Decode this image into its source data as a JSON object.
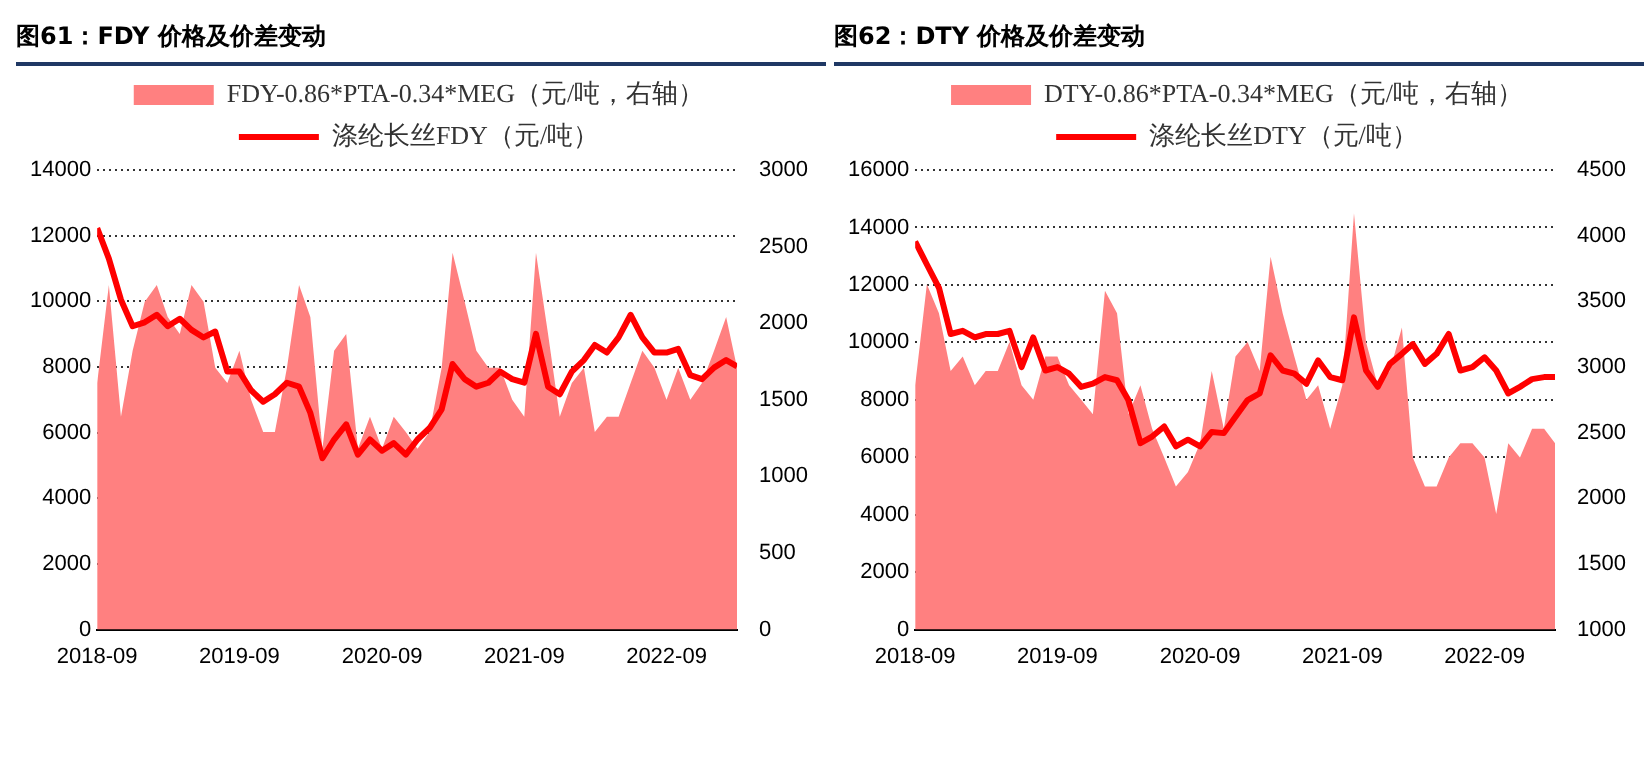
{
  "chart_data": [
    {
      "type": "line",
      "title": "图61：FDY 价格及价差变动",
      "legend": "top",
      "grid": "y",
      "x": [
        "2018-09",
        "2018-10",
        "2018-11",
        "2018-12",
        "2019-01",
        "2019-02",
        "2019-03",
        "2019-04",
        "2019-05",
        "2019-06",
        "2019-07",
        "2019-08",
        "2019-09",
        "2019-10",
        "2019-11",
        "2019-12",
        "2020-01",
        "2020-02",
        "2020-03",
        "2020-04",
        "2020-05",
        "2020-06",
        "2020-07",
        "2020-08",
        "2020-09",
        "2020-10",
        "2020-11",
        "2020-12",
        "2021-01",
        "2021-02",
        "2021-03",
        "2021-04",
        "2021-05",
        "2021-06",
        "2021-07",
        "2021-08",
        "2021-09",
        "2021-10",
        "2021-11",
        "2021-12",
        "2022-01",
        "2022-02",
        "2022-03",
        "2022-04",
        "2022-05",
        "2022-06",
        "2022-07",
        "2022-08",
        "2022-09",
        "2022-10",
        "2022-11",
        "2022-12",
        "2023-01",
        "2023-02",
        "2023-03"
      ],
      "xlim": [
        "2018-09",
        "2023-03"
      ],
      "xticks": [
        "2018-09",
        "2019-09",
        "2020-09",
        "2021-09",
        "2022-09"
      ],
      "ylim": [
        0,
        14000
      ],
      "yticks": [
        0,
        2000,
        4000,
        6000,
        8000,
        10000,
        12000,
        14000
      ],
      "y2lim": [
        0,
        3000
      ],
      "y2ticks": [
        0,
        500,
        1000,
        1500,
        2000,
        2500,
        3000
      ],
      "series": [
        {
          "name": "FDY-0.86*PTA-0.34*MEG（元/吨，右轴）",
          "type": "area",
          "axis": "y2",
          "color": "#ff8080",
          "values": [
            1610,
            2250,
            1390,
            1820,
            2140,
            2250,
            2040,
            1930,
            2250,
            2140,
            1710,
            1610,
            1820,
            1500,
            1290,
            1290,
            1710,
            2250,
            2040,
            1180,
            1820,
            1930,
            1180,
            1390,
            1180,
            1390,
            1290,
            1180,
            1290,
            1710,
            2460,
            2140,
            1820,
            1710,
            1710,
            1500,
            1390,
            2460,
            1930,
            1390,
            1610,
            1710,
            1290,
            1390,
            1390,
            1610,
            1820,
            1710,
            1500,
            1710,
            1500,
            1610,
            1820,
            2040,
            1710
          ]
        },
        {
          "name": "涤纶长丝FDY（元/吨）",
          "type": "line",
          "color": "#ff0000",
          "values": [
            12230,
            11300,
            10050,
            9240,
            9360,
            9590,
            9240,
            9470,
            9130,
            8900,
            9080,
            7860,
            7860,
            7290,
            6940,
            7170,
            7520,
            7400,
            6600,
            5220,
            5790,
            6250,
            5330,
            5790,
            5450,
            5680,
            5330,
            5790,
            6140,
            6710,
            8090,
            7630,
            7400,
            7520,
            7860,
            7630,
            7520,
            9010,
            7400,
            7170,
            7860,
            8210,
            8670,
            8440,
            8900,
            9590,
            8900,
            8440,
            8440,
            8550,
            7750,
            7630,
            7980,
            8210,
            8020
          ]
        }
      ]
    },
    {
      "type": "line",
      "title": "图62：DTY 价格及价差变动",
      "legend": "top",
      "grid": "y",
      "x": [
        "2018-09",
        "2018-10",
        "2018-11",
        "2018-12",
        "2019-01",
        "2019-02",
        "2019-03",
        "2019-04",
        "2019-05",
        "2019-06",
        "2019-07",
        "2019-08",
        "2019-09",
        "2019-10",
        "2019-11",
        "2019-12",
        "2020-01",
        "2020-02",
        "2020-03",
        "2020-04",
        "2020-05",
        "2020-06",
        "2020-07",
        "2020-08",
        "2020-09",
        "2020-10",
        "2020-11",
        "2020-12",
        "2021-01",
        "2021-02",
        "2021-03",
        "2021-04",
        "2021-05",
        "2021-06",
        "2021-07",
        "2021-08",
        "2021-09",
        "2021-10",
        "2021-11",
        "2021-12",
        "2022-01",
        "2022-02",
        "2022-03",
        "2022-04",
        "2022-05",
        "2022-06",
        "2022-07",
        "2022-08",
        "2022-09",
        "2022-10",
        "2022-11",
        "2022-12",
        "2023-01",
        "2023-02",
        "2023-03"
      ],
      "xlim": [
        "2018-09",
        "2023-03"
      ],
      "xticks": [
        "2018-09",
        "2019-09",
        "2020-09",
        "2021-09",
        "2022-09"
      ],
      "ylim": [
        0,
        16000
      ],
      "yticks": [
        0,
        2000,
        4000,
        6000,
        8000,
        10000,
        12000,
        14000,
        16000
      ],
      "y2lim": [
        1000,
        4500
      ],
      "y2ticks": [
        1000,
        1500,
        2000,
        2500,
        3000,
        3500,
        4000,
        4500
      ],
      "series": [
        {
          "name": "DTY-0.86*PTA-0.34*MEG（元/吨，右轴）",
          "type": "area",
          "axis": "y2",
          "color": "#ff8080",
          "values": [
            2860,
            3630,
            3410,
            2970,
            3080,
            2860,
            2970,
            2970,
            3190,
            2860,
            2750,
            3080,
            3080,
            2860,
            2750,
            2640,
            3580,
            3410,
            2640,
            2860,
            2530,
            2310,
            2090,
            2200,
            2420,
            2970,
            2530,
            3080,
            3190,
            2970,
            3840,
            3410,
            3080,
            2750,
            2860,
            2530,
            2860,
            4170,
            3190,
            2860,
            2970,
            3300,
            2310,
            2090,
            2090,
            2310,
            2420,
            2420,
            2310,
            1880,
            2420,
            2310,
            2530,
            2530,
            2420
          ]
        },
        {
          "name": "涤纶长丝DTY（元/吨）",
          "type": "line",
          "color": "#ff0000",
          "values": [
            13510,
            12710,
            11900,
            10290,
            10400,
            10170,
            10290,
            10290,
            10400,
            9140,
            10170,
            9020,
            9140,
            8910,
            8450,
            8560,
            8790,
            8680,
            7990,
            6490,
            6720,
            7070,
            6380,
            6610,
            6380,
            6880,
            6840,
            7410,
            7990,
            8220,
            9550,
            9020,
            8910,
            8560,
            9370,
            8790,
            8680,
            10870,
            9020,
            8450,
            9250,
            9600,
            9940,
            9250,
            9600,
            10290,
            9020,
            9140,
            9480,
            9020,
            8220,
            8450,
            8720,
            8790,
            8790
          ]
        }
      ]
    }
  ]
}
